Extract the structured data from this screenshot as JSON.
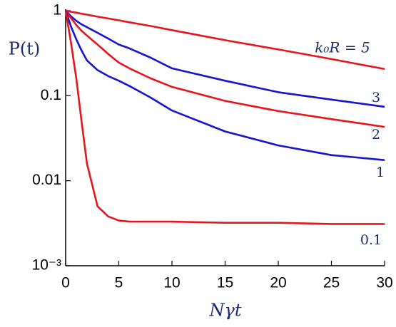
{
  "chart_data": {
    "type": "line",
    "x_label": "Nγt",
    "y_label": "P(t)",
    "log_y": true,
    "x": [
      0,
      0.5,
      1,
      1.5,
      2,
      3,
      4,
      5,
      6,
      8,
      10,
      15,
      20,
      25,
      30
    ],
    "series": [
      {
        "name": "k₀R = 5",
        "color": "#e8141c",
        "values": [
          1,
          0.97,
          0.95,
          0.92,
          0.9,
          0.85,
          0.81,
          0.77,
          0.73,
          0.66,
          0.59,
          0.45,
          0.35,
          0.27,
          0.206
        ]
      },
      {
        "name": "3",
        "color": "#1414d2",
        "values": [
          1,
          0.86,
          0.76,
          0.69,
          0.64,
          0.55,
          0.47,
          0.4,
          0.36,
          0.28,
          0.21,
          0.15,
          0.11,
          0.09,
          0.074
        ]
      },
      {
        "name": "2",
        "color": "#e8141c",
        "values": [
          1,
          0.82,
          0.68,
          0.58,
          0.51,
          0.4,
          0.31,
          0.245,
          0.21,
          0.16,
          0.127,
          0.087,
          0.066,
          0.053,
          0.043
        ]
      },
      {
        "name": "1",
        "color": "#1414d2",
        "values": [
          1,
          0.65,
          0.46,
          0.34,
          0.26,
          0.2,
          0.17,
          0.15,
          0.13,
          0.095,
          0.067,
          0.038,
          0.026,
          0.02,
          0.0175
        ]
      },
      {
        "name": "0.1",
        "color": "#e8141c",
        "values": [
          1,
          0.42,
          0.16,
          0.05,
          0.016,
          0.005,
          0.0038,
          0.0034,
          0.0033,
          0.0033,
          0.0033,
          0.0032,
          0.0032,
          0.0031,
          0.0031
        ]
      }
    ],
    "xlim": [
      0,
      30
    ],
    "xticks": [
      0,
      5,
      10,
      15,
      20,
      25,
      30
    ],
    "ylim": [
      0.001,
      1
    ],
    "yticks": [
      {
        "value": 0.001,
        "label": "10⁻³"
      },
      0.01,
      0.1,
      1
    ],
    "grid": false
  }
}
